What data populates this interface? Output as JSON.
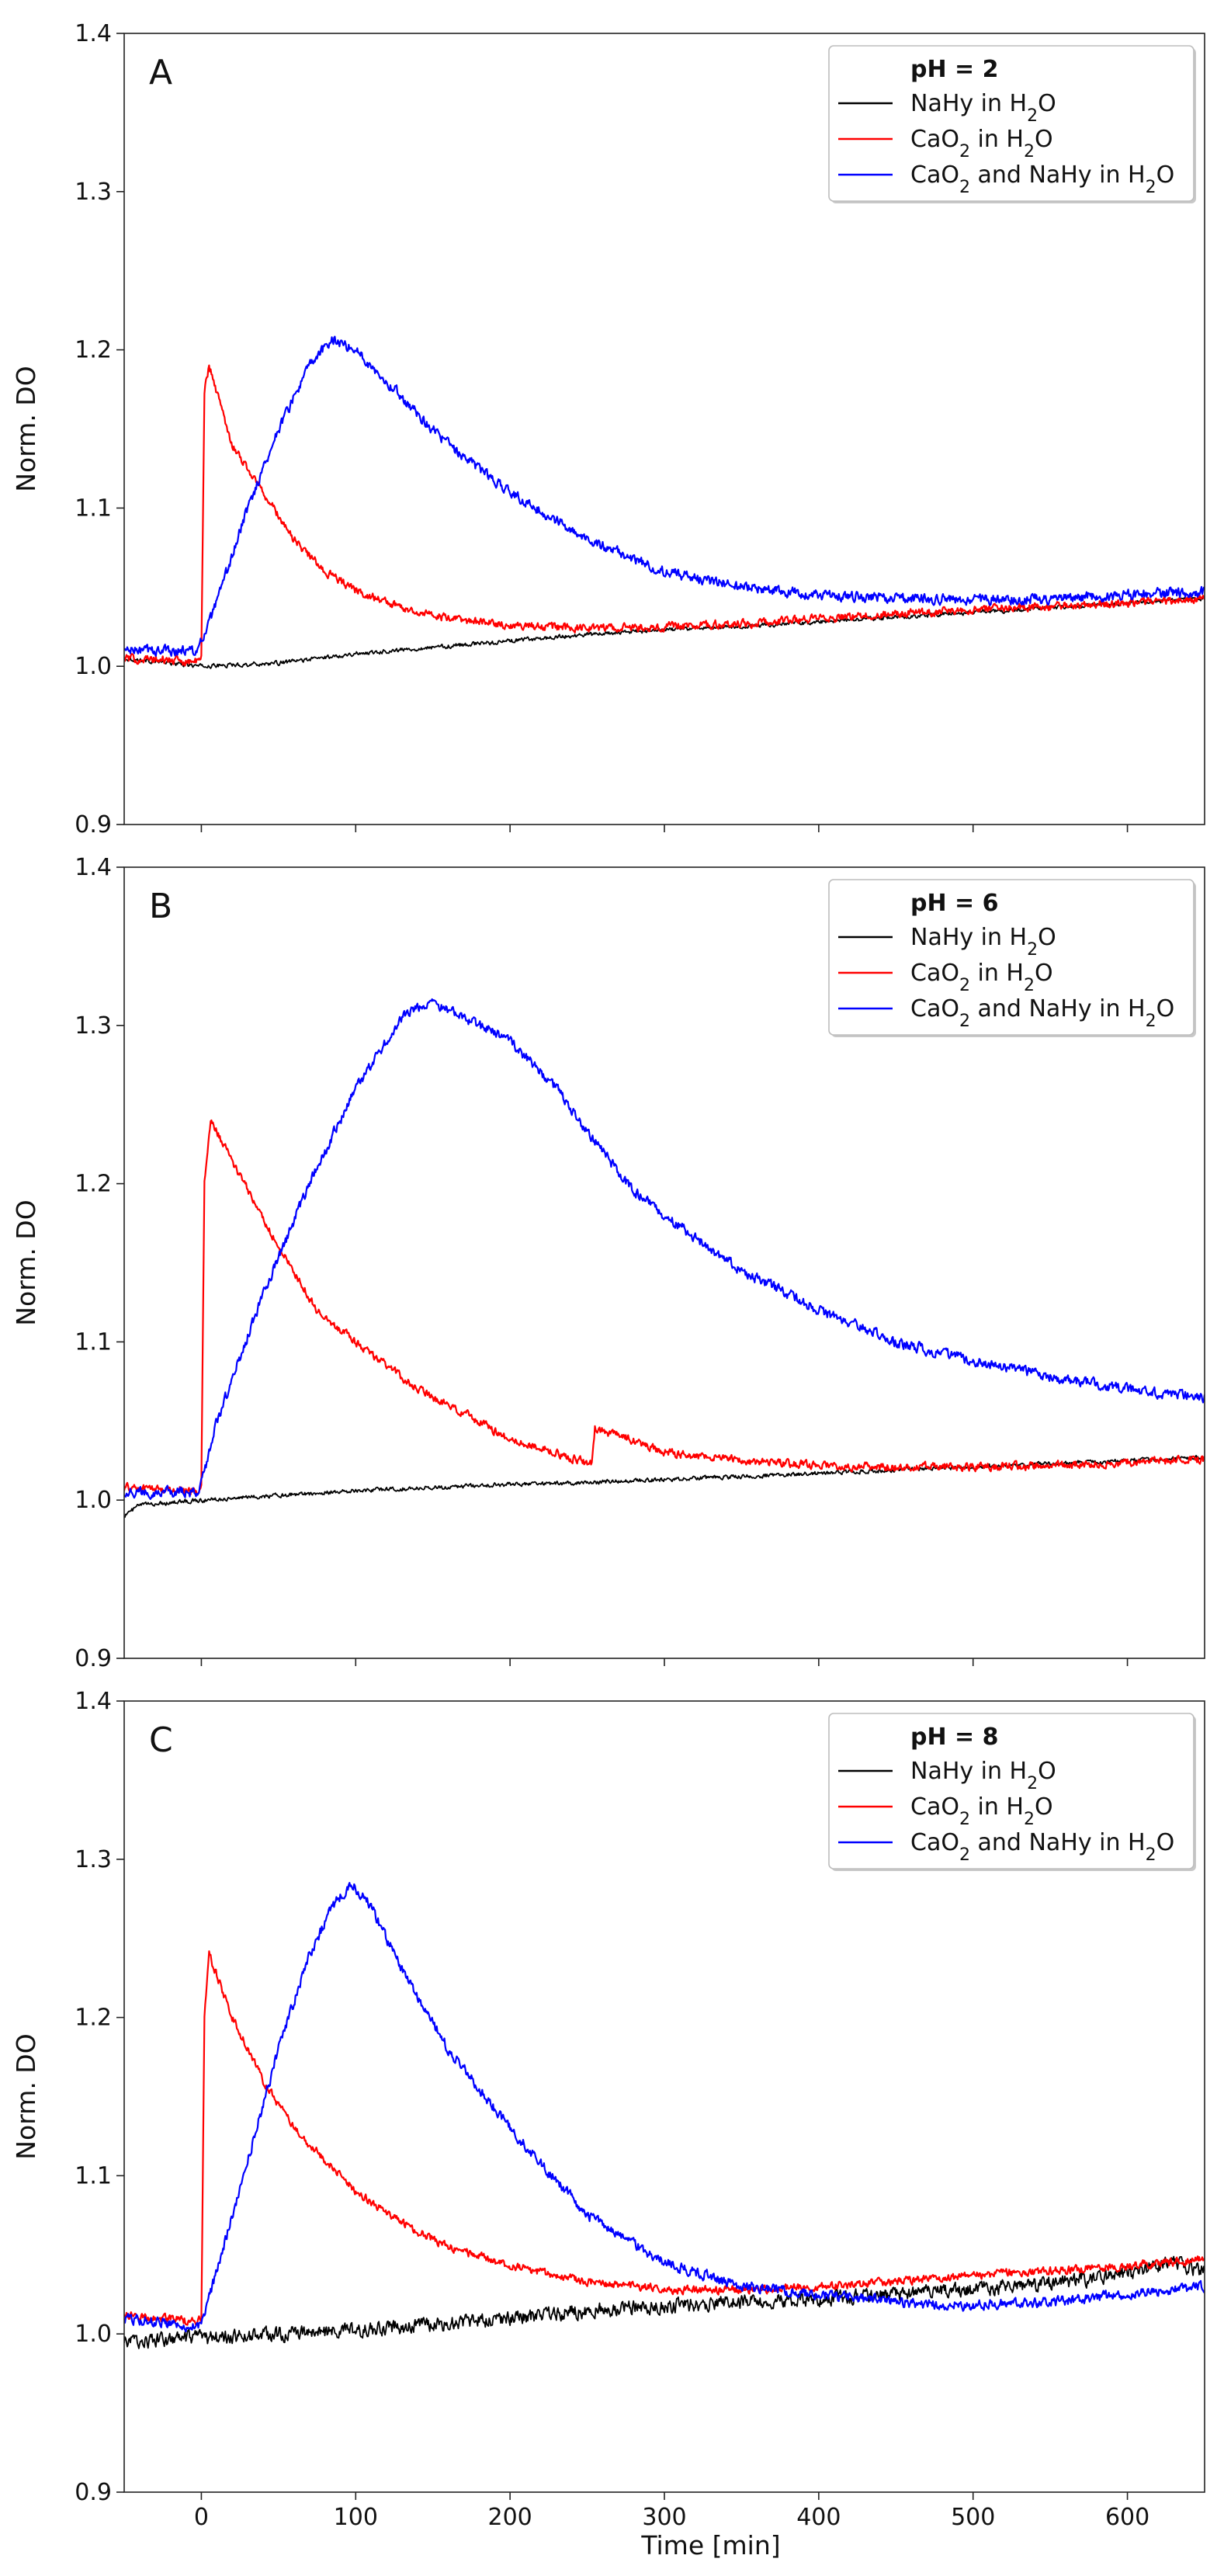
{
  "chart_data": [
    {
      "type": "line",
      "panel_label": "A",
      "xlabel": "",
      "ylabel": "Norm. DO",
      "xlim": [
        -50,
        650
      ],
      "ylim": [
        0.9,
        1.4
      ],
      "x_ticks": [
        "0",
        "100",
        "200",
        "300",
        "400",
        "500",
        "600"
      ],
      "y_ticks": [
        "0.9",
        "1.0",
        "1.1",
        "1.2",
        "1.3",
        "1.4"
      ],
      "legend": {
        "title": "pH = 2",
        "position": "top-right",
        "entries": [
          {
            "prefix": "NaHy in H",
            "sub": "2",
            "suffix": "O",
            "color": "#000000"
          },
          {
            "prefix": "CaO",
            "sub": "2",
            "suffix": " in H",
            "sub2": "2",
            "suffix2": "O",
            "color": "#ff0000"
          },
          {
            "prefix": "CaO",
            "sub": "2",
            "suffix": " and NaHy in H",
            "sub2": "2",
            "suffix2": "O",
            "color": "#0000ff"
          }
        ]
      },
      "series": [
        {
          "color": "#000000",
          "noise": 0.002,
          "points": [
            [
              -50,
              1.005
            ],
            [
              0,
              1.0
            ],
            [
              50,
              1.002
            ],
            [
              100,
              1.008
            ],
            [
              150,
              1.012
            ],
            [
              200,
              1.016
            ],
            [
              250,
              1.02
            ],
            [
              300,
              1.023
            ],
            [
              350,
              1.025
            ],
            [
              400,
              1.028
            ],
            [
              450,
              1.031
            ],
            [
              500,
              1.034
            ],
            [
              550,
              1.037
            ],
            [
              600,
              1.04
            ],
            [
              650,
              1.043
            ]
          ]
        },
        {
          "color": "#ff0000",
          "noise": 0.004,
          "points": [
            [
              -50,
              1.005
            ],
            [
              -2,
              1.003
            ],
            [
              0,
              1.005
            ],
            [
              2,
              1.175
            ],
            [
              5,
              1.19
            ],
            [
              20,
              1.14
            ],
            [
              40,
              1.11
            ],
            [
              60,
              1.08
            ],
            [
              80,
              1.06
            ],
            [
              100,
              1.048
            ],
            [
              130,
              1.037
            ],
            [
              160,
              1.03
            ],
            [
              200,
              1.026
            ],
            [
              250,
              1.024
            ],
            [
              300,
              1.025
            ],
            [
              350,
              1.027
            ],
            [
              400,
              1.03
            ],
            [
              450,
              1.033
            ],
            [
              500,
              1.036
            ],
            [
              550,
              1.038
            ],
            [
              600,
              1.04
            ],
            [
              650,
              1.043
            ]
          ]
        },
        {
          "color": "#0000ff",
          "noise": 0.005,
          "points": [
            [
              -50,
              1.01
            ],
            [
              -2,
              1.01
            ],
            [
              0,
              1.015
            ],
            [
              10,
              1.04
            ],
            [
              30,
              1.1
            ],
            [
              50,
              1.15
            ],
            [
              70,
              1.19
            ],
            [
              85,
              1.207
            ],
            [
              100,
              1.2
            ],
            [
              130,
              1.17
            ],
            [
              160,
              1.14
            ],
            [
              200,
              1.11
            ],
            [
              250,
              1.08
            ],
            [
              300,
              1.06
            ],
            [
              350,
              1.05
            ],
            [
              400,
              1.045
            ],
            [
              450,
              1.043
            ],
            [
              500,
              1.042
            ],
            [
              550,
              1.043
            ],
            [
              600,
              1.045
            ],
            [
              650,
              1.047
            ]
          ]
        }
      ]
    },
    {
      "type": "line",
      "panel_label": "B",
      "xlabel": "",
      "ylabel": "Norm. DO",
      "xlim": [
        -50,
        650
      ],
      "ylim": [
        0.9,
        1.4
      ],
      "x_ticks": [
        "0",
        "100",
        "200",
        "300",
        "400",
        "500",
        "600"
      ],
      "y_ticks": [
        "0.9",
        "1.0",
        "1.1",
        "1.2",
        "1.3",
        "1.4"
      ],
      "legend": {
        "title": "pH = 6",
        "position": "top-right",
        "entries": [
          {
            "prefix": "NaHy in H",
            "sub": "2",
            "suffix": "O",
            "color": "#000000"
          },
          {
            "prefix": "CaO",
            "sub": "2",
            "suffix": " in H",
            "sub2": "2",
            "suffix2": "O",
            "color": "#ff0000"
          },
          {
            "prefix": "CaO",
            "sub": "2",
            "suffix": " and NaHy in H",
            "sub2": "2",
            "suffix2": "O",
            "color": "#0000ff"
          }
        ]
      },
      "series": [
        {
          "color": "#000000",
          "noise": 0.002,
          "points": [
            [
              -50,
              0.99
            ],
            [
              -40,
              0.997
            ],
            [
              0,
              1.0
            ],
            [
              50,
              1.003
            ],
            [
              100,
              1.006
            ],
            [
              150,
              1.008
            ],
            [
              200,
              1.01
            ],
            [
              250,
              1.011
            ],
            [
              300,
              1.013
            ],
            [
              350,
              1.015
            ],
            [
              400,
              1.017
            ],
            [
              450,
              1.019
            ],
            [
              500,
              1.021
            ],
            [
              550,
              1.023
            ],
            [
              600,
              1.025
            ],
            [
              650,
              1.027
            ]
          ]
        },
        {
          "color": "#ff0000",
          "noise": 0.004,
          "points": [
            [
              -50,
              1.008
            ],
            [
              -2,
              1.006
            ],
            [
              0,
              1.01
            ],
            [
              2,
              1.2
            ],
            [
              6,
              1.24
            ],
            [
              25,
              1.205
            ],
            [
              50,
              1.16
            ],
            [
              75,
              1.12
            ],
            [
              100,
              1.1
            ],
            [
              140,
              1.07
            ],
            [
              180,
              1.05
            ],
            [
              200,
              1.038
            ],
            [
              230,
              1.03
            ],
            [
              253,
              1.022
            ],
            [
              255,
              1.045
            ],
            [
              280,
              1.038
            ],
            [
              300,
              1.03
            ],
            [
              350,
              1.025
            ],
            [
              400,
              1.022
            ],
            [
              450,
              1.021
            ],
            [
              500,
              1.021
            ],
            [
              550,
              1.022
            ],
            [
              600,
              1.024
            ],
            [
              650,
              1.026
            ]
          ]
        },
        {
          "color": "#0000ff",
          "noise": 0.005,
          "points": [
            [
              -50,
              1.005
            ],
            [
              -2,
              1.005
            ],
            [
              0,
              1.01
            ],
            [
              10,
              1.05
            ],
            [
              40,
              1.13
            ],
            [
              70,
              1.2
            ],
            [
              100,
              1.26
            ],
            [
              130,
              1.305
            ],
            [
              150,
              1.315
            ],
            [
              170,
              1.305
            ],
            [
              200,
              1.29
            ],
            [
              230,
              1.26
            ],
            [
              260,
              1.22
            ],
            [
              280,
              1.195
            ],
            [
              300,
              1.18
            ],
            [
              350,
              1.145
            ],
            [
              400,
              1.12
            ],
            [
              450,
              1.1
            ],
            [
              500,
              1.088
            ],
            [
              550,
              1.078
            ],
            [
              600,
              1.07
            ],
            [
              650,
              1.065
            ]
          ]
        }
      ]
    },
    {
      "type": "line",
      "panel_label": "C",
      "xlabel": "Time [min]",
      "ylabel": "Norm. DO",
      "xlim": [
        -50,
        650
      ],
      "ylim": [
        0.9,
        1.4
      ],
      "x_ticks": [
        "0",
        "100",
        "200",
        "300",
        "400",
        "500",
        "600"
      ],
      "y_ticks": [
        "0.9",
        "1.0",
        "1.1",
        "1.2",
        "1.3",
        "1.4"
      ],
      "legend": {
        "title": "pH = 8",
        "position": "top-right",
        "entries": [
          {
            "prefix": "NaHy in H",
            "sub": "2",
            "suffix": "O",
            "color": "#000000"
          },
          {
            "prefix": "CaO",
            "sub": "2",
            "suffix": " in H",
            "sub2": "2",
            "suffix2": "O",
            "color": "#ff0000"
          },
          {
            "prefix": "CaO",
            "sub": "2",
            "suffix": " and NaHy in H",
            "sub2": "2",
            "suffix2": "O",
            "color": "#0000ff"
          }
        ]
      },
      "series": [
        {
          "color": "#000000",
          "noise": 0.007,
          "points": [
            [
              -50,
              0.995
            ],
            [
              0,
              0.997
            ],
            [
              50,
              1.0
            ],
            [
              100,
              1.002
            ],
            [
              150,
              1.006
            ],
            [
              200,
              1.01
            ],
            [
              250,
              1.015
            ],
            [
              300,
              1.018
            ],
            [
              350,
              1.02
            ],
            [
              400,
              1.022
            ],
            [
              450,
              1.025
            ],
            [
              500,
              1.028
            ],
            [
              550,
              1.032
            ],
            [
              600,
              1.038
            ],
            [
              625,
              1.045
            ],
            [
              650,
              1.04
            ]
          ]
        },
        {
          "color": "#ff0000",
          "noise": 0.004,
          "points": [
            [
              -50,
              1.012
            ],
            [
              -2,
              1.008
            ],
            [
              0,
              1.01
            ],
            [
              2,
              1.2
            ],
            [
              5,
              1.24
            ],
            [
              20,
              1.2
            ],
            [
              40,
              1.16
            ],
            [
              60,
              1.13
            ],
            [
              80,
              1.11
            ],
            [
              100,
              1.09
            ],
            [
              130,
              1.07
            ],
            [
              160,
              1.055
            ],
            [
              200,
              1.043
            ],
            [
              250,
              1.033
            ],
            [
              300,
              1.028
            ],
            [
              350,
              1.028
            ],
            [
              400,
              1.03
            ],
            [
              450,
              1.033
            ],
            [
              500,
              1.037
            ],
            [
              550,
              1.04
            ],
            [
              600,
              1.043
            ],
            [
              650,
              1.047
            ]
          ]
        },
        {
          "color": "#0000ff",
          "noise": 0.005,
          "points": [
            [
              -50,
              1.01
            ],
            [
              -2,
              1.005
            ],
            [
              0,
              1.005
            ],
            [
              10,
              1.04
            ],
            [
              30,
              1.11
            ],
            [
              50,
              1.18
            ],
            [
              70,
              1.24
            ],
            [
              85,
              1.27
            ],
            [
              97,
              1.285
            ],
            [
              110,
              1.27
            ],
            [
              130,
              1.23
            ],
            [
              160,
              1.18
            ],
            [
              200,
              1.13
            ],
            [
              250,
              1.075
            ],
            [
              300,
              1.045
            ],
            [
              350,
              1.03
            ],
            [
              400,
              1.025
            ],
            [
              450,
              1.02
            ],
            [
              500,
              1.018
            ],
            [
              550,
              1.02
            ],
            [
              600,
              1.025
            ],
            [
              650,
              1.03
            ]
          ]
        }
      ]
    }
  ]
}
